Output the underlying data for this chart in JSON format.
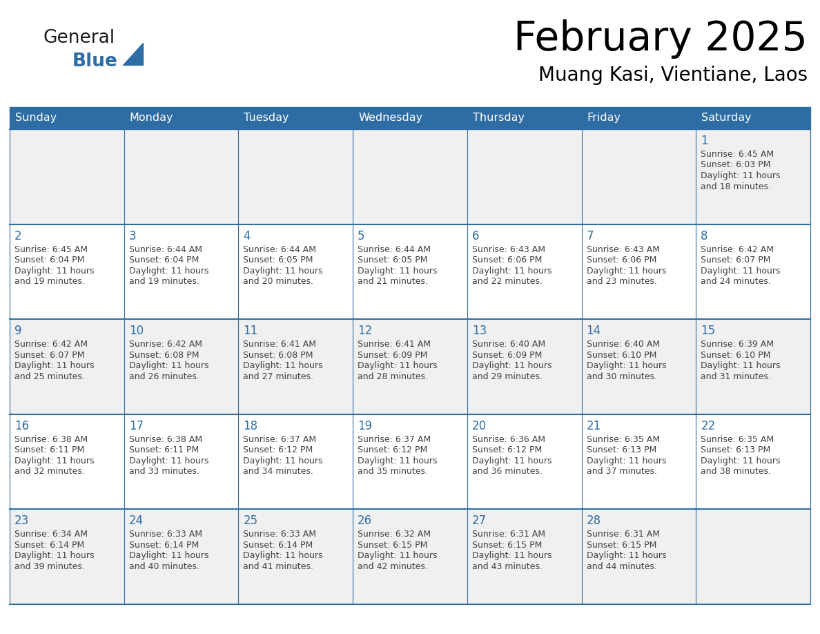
{
  "title": "February 2025",
  "subtitle": "Muang Kasi, Vientiane, Laos",
  "days_of_week": [
    "Sunday",
    "Monday",
    "Tuesday",
    "Wednesday",
    "Thursday",
    "Friday",
    "Saturday"
  ],
  "header_bg": "#2E6DA4",
  "header_text": "#FFFFFF",
  "cell_bg_odd": "#FFFFFF",
  "cell_bg_even": "#F0F0F0",
  "day_number_color": "#2E6DA4",
  "text_color": "#404040",
  "line_color": "#2E6DA4",
  "logo_general_color": "#1a1a1a",
  "logo_blue_color": "#2E6DA4",
  "calendar_data": [
    [
      null,
      null,
      null,
      null,
      null,
      null,
      {
        "day": 1,
        "sunrise": "6:45 AM",
        "sunset": "6:03 PM",
        "daylight": "11 hours and 18 minutes."
      }
    ],
    [
      {
        "day": 2,
        "sunrise": "6:45 AM",
        "sunset": "6:04 PM",
        "daylight": "11 hours and 19 minutes."
      },
      {
        "day": 3,
        "sunrise": "6:44 AM",
        "sunset": "6:04 PM",
        "daylight": "11 hours and 19 minutes."
      },
      {
        "day": 4,
        "sunrise": "6:44 AM",
        "sunset": "6:05 PM",
        "daylight": "11 hours and 20 minutes."
      },
      {
        "day": 5,
        "sunrise": "6:44 AM",
        "sunset": "6:05 PM",
        "daylight": "11 hours and 21 minutes."
      },
      {
        "day": 6,
        "sunrise": "6:43 AM",
        "sunset": "6:06 PM",
        "daylight": "11 hours and 22 minutes."
      },
      {
        "day": 7,
        "sunrise": "6:43 AM",
        "sunset": "6:06 PM",
        "daylight": "11 hours and 23 minutes."
      },
      {
        "day": 8,
        "sunrise": "6:42 AM",
        "sunset": "6:07 PM",
        "daylight": "11 hours and 24 minutes."
      }
    ],
    [
      {
        "day": 9,
        "sunrise": "6:42 AM",
        "sunset": "6:07 PM",
        "daylight": "11 hours and 25 minutes."
      },
      {
        "day": 10,
        "sunrise": "6:42 AM",
        "sunset": "6:08 PM",
        "daylight": "11 hours and 26 minutes."
      },
      {
        "day": 11,
        "sunrise": "6:41 AM",
        "sunset": "6:08 PM",
        "daylight": "11 hours and 27 minutes."
      },
      {
        "day": 12,
        "sunrise": "6:41 AM",
        "sunset": "6:09 PM",
        "daylight": "11 hours and 28 minutes."
      },
      {
        "day": 13,
        "sunrise": "6:40 AM",
        "sunset": "6:09 PM",
        "daylight": "11 hours and 29 minutes."
      },
      {
        "day": 14,
        "sunrise": "6:40 AM",
        "sunset": "6:10 PM",
        "daylight": "11 hours and 30 minutes."
      },
      {
        "day": 15,
        "sunrise": "6:39 AM",
        "sunset": "6:10 PM",
        "daylight": "11 hours and 31 minutes."
      }
    ],
    [
      {
        "day": 16,
        "sunrise": "6:38 AM",
        "sunset": "6:11 PM",
        "daylight": "11 hours and 32 minutes."
      },
      {
        "day": 17,
        "sunrise": "6:38 AM",
        "sunset": "6:11 PM",
        "daylight": "11 hours and 33 minutes."
      },
      {
        "day": 18,
        "sunrise": "6:37 AM",
        "sunset": "6:12 PM",
        "daylight": "11 hours and 34 minutes."
      },
      {
        "day": 19,
        "sunrise": "6:37 AM",
        "sunset": "6:12 PM",
        "daylight": "11 hours and 35 minutes."
      },
      {
        "day": 20,
        "sunrise": "6:36 AM",
        "sunset": "6:12 PM",
        "daylight": "11 hours and 36 minutes."
      },
      {
        "day": 21,
        "sunrise": "6:35 AM",
        "sunset": "6:13 PM",
        "daylight": "11 hours and 37 minutes."
      },
      {
        "day": 22,
        "sunrise": "6:35 AM",
        "sunset": "6:13 PM",
        "daylight": "11 hours and 38 minutes."
      }
    ],
    [
      {
        "day": 23,
        "sunrise": "6:34 AM",
        "sunset": "6:14 PM",
        "daylight": "11 hours and 39 minutes."
      },
      {
        "day": 24,
        "sunrise": "6:33 AM",
        "sunset": "6:14 PM",
        "daylight": "11 hours and 40 minutes."
      },
      {
        "day": 25,
        "sunrise": "6:33 AM",
        "sunset": "6:14 PM",
        "daylight": "11 hours and 41 minutes."
      },
      {
        "day": 26,
        "sunrise": "6:32 AM",
        "sunset": "6:15 PM",
        "daylight": "11 hours and 42 minutes."
      },
      {
        "day": 27,
        "sunrise": "6:31 AM",
        "sunset": "6:15 PM",
        "daylight": "11 hours and 43 minutes."
      },
      {
        "day": 28,
        "sunrise": "6:31 AM",
        "sunset": "6:15 PM",
        "daylight": "11 hours and 44 minutes."
      },
      null
    ]
  ]
}
